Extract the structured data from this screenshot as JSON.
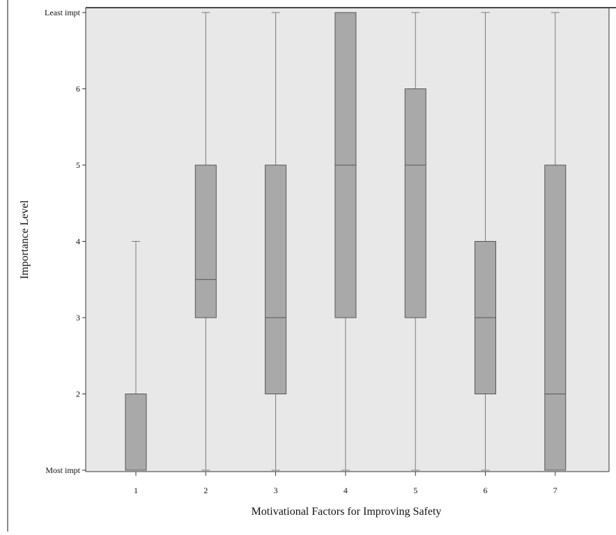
{
  "chart_data": {
    "type": "boxplot",
    "title": "",
    "xlabel": "Motivational Factors for Improving Safety",
    "ylabel": "Importance Level",
    "ylim": [
      1,
      7
    ],
    "yticks": [
      {
        "value": 1,
        "label": "Most impt"
      },
      {
        "value": 2,
        "label": "2"
      },
      {
        "value": 3,
        "label": "3"
      },
      {
        "value": 4,
        "label": "4"
      },
      {
        "value": 5,
        "label": "5"
      },
      {
        "value": 6,
        "label": "6"
      },
      {
        "value": 7,
        "label": "Least impt"
      }
    ],
    "categories": [
      "1",
      "2",
      "3",
      "4",
      "5",
      "6",
      "7"
    ],
    "boxes": [
      {
        "category": "1",
        "min": 1,
        "q1": 1,
        "median": 1,
        "q3": 2,
        "max": 4
      },
      {
        "category": "2",
        "min": 1,
        "q1": 3,
        "median": 3.5,
        "q3": 5,
        "max": 7
      },
      {
        "category": "3",
        "min": 1,
        "q1": 2,
        "median": 3,
        "q3": 5,
        "max": 7
      },
      {
        "category": "4",
        "min": 1,
        "q1": 3,
        "median": 5,
        "q3": 7,
        "max": 7
      },
      {
        "category": "5",
        "min": 1,
        "q1": 3,
        "median": 5,
        "q3": 6,
        "max": 7
      },
      {
        "category": "6",
        "min": 1,
        "q1": 2,
        "median": 3,
        "q3": 4,
        "max": 7
      },
      {
        "category": "7",
        "min": 1,
        "q1": 1,
        "median": 2,
        "q3": 5,
        "max": 7
      }
    ],
    "grid": false,
    "colors": {
      "plot_background": "#e8e8e8",
      "box_fill": "#a9a9a9",
      "box_stroke": "#555555",
      "whisker": "#7a7a7a",
      "axis": "#333333"
    }
  }
}
